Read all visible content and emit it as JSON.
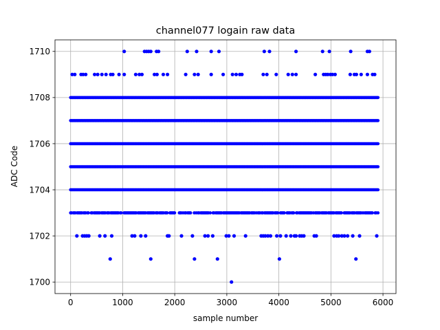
{
  "chart_data": {
    "type": "scatter",
    "title": "channel077 logain raw data",
    "xlabel": "sample number",
    "ylabel": "ADC Code",
    "xlim": [
      -300,
      6250
    ],
    "ylim": [
      1699.5,
      1710.5
    ],
    "xticks": [
      0,
      1000,
      2000,
      3000,
      4000,
      5000,
      6000
    ],
    "yticks": [
      1700,
      1702,
      1704,
      1706,
      1708,
      1710
    ],
    "xtick_labels": [
      "0",
      "1000",
      "2000",
      "3000",
      "4000",
      "5000",
      "6000"
    ],
    "ytick_labels": [
      "1700",
      "1702",
      "1704",
      "1706",
      "1708",
      "1710"
    ],
    "grid": true,
    "marker_color": "#0000ff",
    "n_samples": 5920,
    "dense_levels": [
      1703,
      1704,
      1705,
      1706,
      1707,
      1708
    ],
    "sparse_points": [
      {
        "x": 1030,
        "y": 1710
      },
      {
        "x": 1420,
        "y": 1710
      },
      {
        "x": 1460,
        "y": 1710
      },
      {
        "x": 1500,
        "y": 1710
      },
      {
        "x": 1540,
        "y": 1710
      },
      {
        "x": 1650,
        "y": 1710
      },
      {
        "x": 1690,
        "y": 1710
      },
      {
        "x": 2240,
        "y": 1710
      },
      {
        "x": 2420,
        "y": 1710
      },
      {
        "x": 2700,
        "y": 1710
      },
      {
        "x": 2850,
        "y": 1710
      },
      {
        "x": 3720,
        "y": 1710
      },
      {
        "x": 3820,
        "y": 1710
      },
      {
        "x": 4330,
        "y": 1710
      },
      {
        "x": 4840,
        "y": 1710
      },
      {
        "x": 4970,
        "y": 1710
      },
      {
        "x": 5380,
        "y": 1710
      },
      {
        "x": 5700,
        "y": 1710
      },
      {
        "x": 5740,
        "y": 1710
      },
      {
        "x": 30,
        "y": 1709
      },
      {
        "x": 80,
        "y": 1709
      },
      {
        "x": 200,
        "y": 1709
      },
      {
        "x": 240,
        "y": 1709
      },
      {
        "x": 290,
        "y": 1709
      },
      {
        "x": 460,
        "y": 1709
      },
      {
        "x": 520,
        "y": 1709
      },
      {
        "x": 600,
        "y": 1709
      },
      {
        "x": 680,
        "y": 1709
      },
      {
        "x": 770,
        "y": 1709
      },
      {
        "x": 810,
        "y": 1709
      },
      {
        "x": 930,
        "y": 1709
      },
      {
        "x": 1030,
        "y": 1709
      },
      {
        "x": 1250,
        "y": 1709
      },
      {
        "x": 1320,
        "y": 1709
      },
      {
        "x": 1370,
        "y": 1709
      },
      {
        "x": 1610,
        "y": 1709
      },
      {
        "x": 1660,
        "y": 1709
      },
      {
        "x": 1780,
        "y": 1709
      },
      {
        "x": 1860,
        "y": 1709
      },
      {
        "x": 2210,
        "y": 1709
      },
      {
        "x": 2380,
        "y": 1709
      },
      {
        "x": 2450,
        "y": 1709
      },
      {
        "x": 2700,
        "y": 1709
      },
      {
        "x": 2930,
        "y": 1709
      },
      {
        "x": 3110,
        "y": 1709
      },
      {
        "x": 3180,
        "y": 1709
      },
      {
        "x": 3250,
        "y": 1709
      },
      {
        "x": 3290,
        "y": 1709
      },
      {
        "x": 3700,
        "y": 1709
      },
      {
        "x": 3770,
        "y": 1709
      },
      {
        "x": 3950,
        "y": 1709
      },
      {
        "x": 4180,
        "y": 1709
      },
      {
        "x": 4260,
        "y": 1709
      },
      {
        "x": 4330,
        "y": 1709
      },
      {
        "x": 4700,
        "y": 1709
      },
      {
        "x": 4860,
        "y": 1709
      },
      {
        "x": 4900,
        "y": 1709
      },
      {
        "x": 4940,
        "y": 1709
      },
      {
        "x": 4990,
        "y": 1709
      },
      {
        "x": 5030,
        "y": 1709
      },
      {
        "x": 5080,
        "y": 1709
      },
      {
        "x": 5370,
        "y": 1709
      },
      {
        "x": 5450,
        "y": 1709
      },
      {
        "x": 5490,
        "y": 1709
      },
      {
        "x": 5580,
        "y": 1709
      },
      {
        "x": 5700,
        "y": 1709
      },
      {
        "x": 5800,
        "y": 1709
      },
      {
        "x": 5840,
        "y": 1709
      },
      {
        "x": 120,
        "y": 1702
      },
      {
        "x": 230,
        "y": 1702
      },
      {
        "x": 270,
        "y": 1702
      },
      {
        "x": 310,
        "y": 1702
      },
      {
        "x": 350,
        "y": 1702
      },
      {
        "x": 560,
        "y": 1702
      },
      {
        "x": 660,
        "y": 1702
      },
      {
        "x": 790,
        "y": 1702
      },
      {
        "x": 1180,
        "y": 1702
      },
      {
        "x": 1230,
        "y": 1702
      },
      {
        "x": 1350,
        "y": 1702
      },
      {
        "x": 1440,
        "y": 1702
      },
      {
        "x": 1860,
        "y": 1702
      },
      {
        "x": 1890,
        "y": 1702
      },
      {
        "x": 2130,
        "y": 1702
      },
      {
        "x": 2340,
        "y": 1702
      },
      {
        "x": 2580,
        "y": 1702
      },
      {
        "x": 2640,
        "y": 1702
      },
      {
        "x": 2730,
        "y": 1702
      },
      {
        "x": 2990,
        "y": 1702
      },
      {
        "x": 3040,
        "y": 1702
      },
      {
        "x": 3140,
        "y": 1702
      },
      {
        "x": 3360,
        "y": 1702
      },
      {
        "x": 3660,
        "y": 1702
      },
      {
        "x": 3700,
        "y": 1702
      },
      {
        "x": 3740,
        "y": 1702
      },
      {
        "x": 3790,
        "y": 1702
      },
      {
        "x": 3840,
        "y": 1702
      },
      {
        "x": 3960,
        "y": 1702
      },
      {
        "x": 4030,
        "y": 1702
      },
      {
        "x": 4140,
        "y": 1702
      },
      {
        "x": 4230,
        "y": 1702
      },
      {
        "x": 4300,
        "y": 1702
      },
      {
        "x": 4330,
        "y": 1702
      },
      {
        "x": 4400,
        "y": 1702
      },
      {
        "x": 4440,
        "y": 1702
      },
      {
        "x": 4480,
        "y": 1702
      },
      {
        "x": 4680,
        "y": 1702
      },
      {
        "x": 4720,
        "y": 1702
      },
      {
        "x": 5060,
        "y": 1702
      },
      {
        "x": 5110,
        "y": 1702
      },
      {
        "x": 5150,
        "y": 1702
      },
      {
        "x": 5210,
        "y": 1702
      },
      {
        "x": 5260,
        "y": 1702
      },
      {
        "x": 5320,
        "y": 1702
      },
      {
        "x": 5420,
        "y": 1702
      },
      {
        "x": 5550,
        "y": 1702
      },
      {
        "x": 5880,
        "y": 1702
      },
      {
        "x": 760,
        "y": 1701
      },
      {
        "x": 1540,
        "y": 1701
      },
      {
        "x": 2380,
        "y": 1701
      },
      {
        "x": 2820,
        "y": 1701
      },
      {
        "x": 4010,
        "y": 1701
      },
      {
        "x": 5480,
        "y": 1701
      },
      {
        "x": 3090,
        "y": 1700
      }
    ]
  }
}
